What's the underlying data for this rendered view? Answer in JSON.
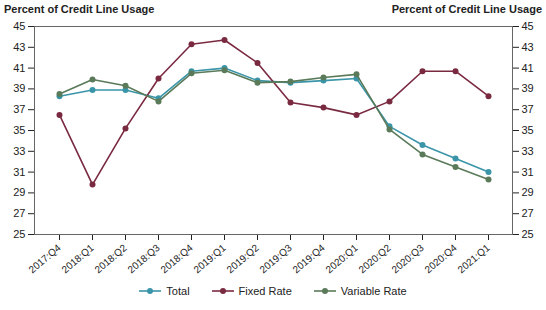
{
  "chart_data": {
    "type": "line",
    "ylabel": "Percent of Credit Line Usage",
    "y2label": "Percent of Credit Line Usage",
    "categories": [
      "2017:Q4",
      "2018:Q1",
      "2018:Q2",
      "2018:Q3",
      "2018:Q4",
      "2019:Q1",
      "2019:Q2",
      "2019:Q3",
      "2019:Q4",
      "2020:Q1",
      "2020:Q2",
      "2020:Q3",
      "2020:Q4",
      "2021:Q1"
    ],
    "series": [
      {
        "name": "Total",
        "color": "#3a95a8",
        "marker": "circle",
        "values": [
          38.3,
          38.9,
          38.9,
          38.1,
          40.7,
          41.0,
          39.8,
          39.6,
          39.8,
          40.0,
          35.4,
          33.6,
          32.3,
          31.0
        ]
      },
      {
        "name": "Fixed Rate",
        "color": "#7a2a40",
        "marker": "circle",
        "values": [
          36.5,
          29.8,
          35.2,
          40.0,
          43.3,
          43.7,
          41.5,
          37.7,
          37.2,
          36.5,
          37.8,
          40.7,
          40.7,
          38.3
        ]
      },
      {
        "name": "Variable Rate",
        "color": "#5a7a5a",
        "marker": "circle",
        "values": [
          38.5,
          39.9,
          39.3,
          37.8,
          40.5,
          40.8,
          39.6,
          39.7,
          40.1,
          40.4,
          35.1,
          32.7,
          31.5,
          30.3
        ]
      }
    ],
    "ylim": [
      25,
      45
    ],
    "yticks": [
      25,
      27,
      29,
      31,
      33,
      35,
      37,
      39,
      41,
      43,
      45
    ],
    "y2lim": [
      25,
      45
    ],
    "y2ticks": [
      25,
      27,
      29,
      31,
      33,
      35,
      37,
      39,
      41,
      43,
      45
    ],
    "grid": false,
    "legend": "bottom"
  }
}
